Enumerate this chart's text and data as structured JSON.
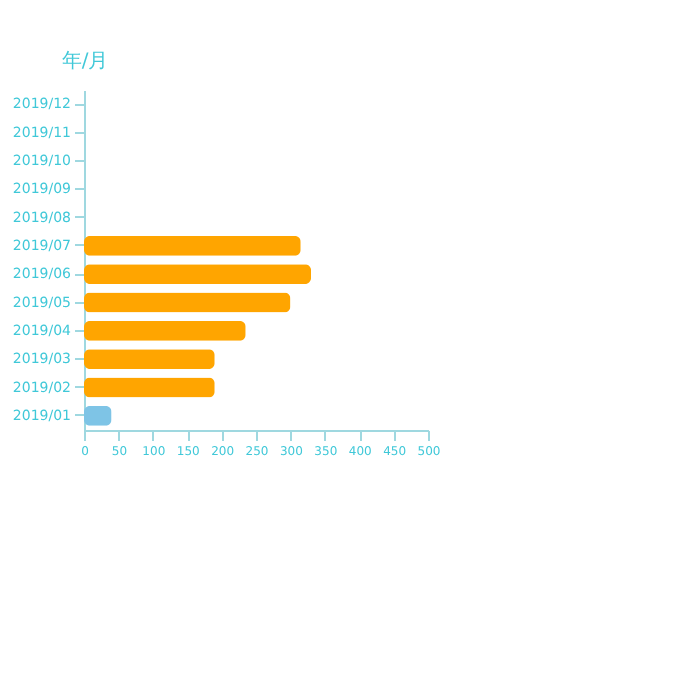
{
  "chart_data": {
    "type": "bar",
    "orientation": "horizontal",
    "ylabel": "年/月",
    "categories": [
      "2019/12",
      "2019/11",
      "2019/10",
      "2019/09",
      "2019/08",
      "2019/07",
      "2019/06",
      "2019/05",
      "2019/04",
      "2019/03",
      "2019/02",
      "2019/01"
    ],
    "values": [
      null,
      null,
      null,
      null,
      null,
      315,
      330,
      300,
      235,
      190,
      190,
      40
    ],
    "colors": [
      "#ffa500",
      "#ffa500",
      "#ffa500",
      "#ffa500",
      "#ffa500",
      "#ffa500",
      "#ffa500",
      "#ffa500",
      "#ffa500",
      "#ffa500",
      "#ffa500",
      "#7ec4e6"
    ],
    "xlim": [
      0,
      500
    ],
    "xticks": [
      0,
      50,
      100,
      150,
      200,
      250,
      300,
      350,
      400,
      450,
      500
    ],
    "grid": false
  }
}
